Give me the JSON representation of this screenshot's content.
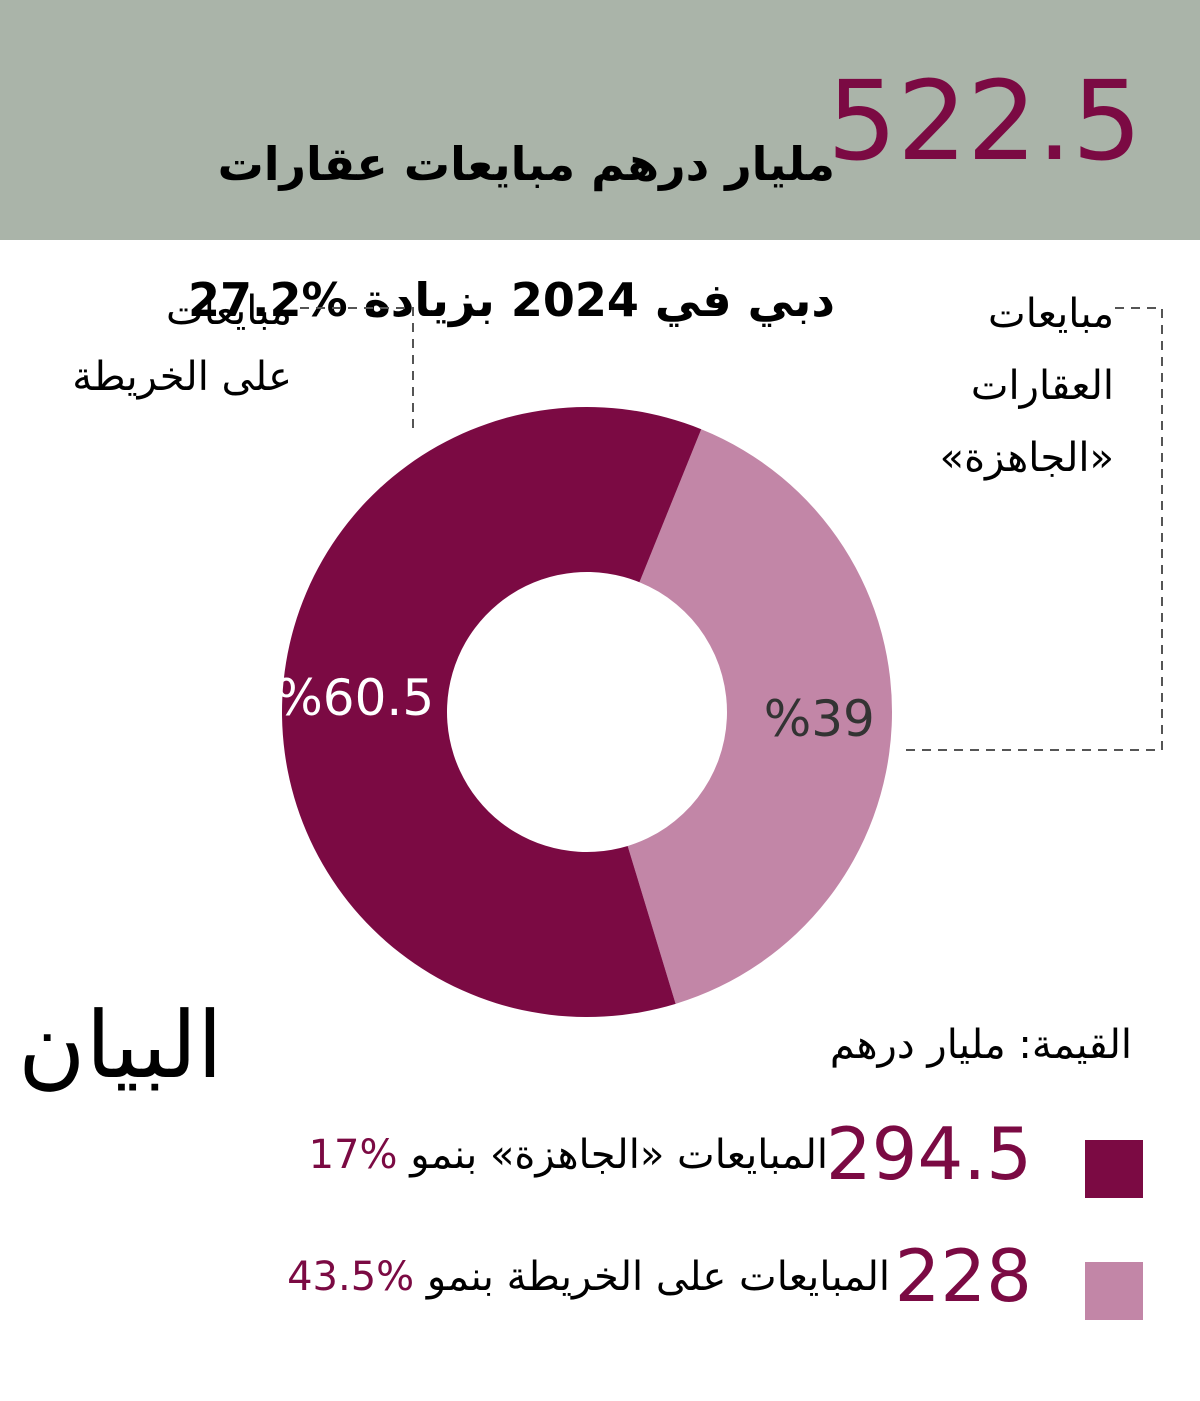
{
  "header": {
    "value": 522.5,
    "title_line1": "مليار درهم مبايعات عقارات",
    "title_line2": "دبي في 2024 بزيادة %27.2"
  },
  "chart_data": {
    "type": "pie",
    "donut": true,
    "categories": [
      "مبايعات\nعلى الخريطة",
      "مبايعات\nالعقارات\n«الجاهزة»"
    ],
    "values": [
      60.5,
      39
    ],
    "value_labels": [
      "%60.5",
      "%39"
    ],
    "colors": [
      "#7b0a43",
      "#c286a7"
    ]
  },
  "legend": {
    "unit": "القيمة: مليار درهم",
    "items": [
      {
        "value": 294.5,
        "label": "المبايعات «الجاهزة» بنمو",
        "growth": "%17",
        "color": "#7b0a43"
      },
      {
        "value": 228,
        "label": "المبايعات على الخريطة بنمو",
        "growth": "%43.5",
        "color": "#c286a7"
      }
    ]
  },
  "logo": "البيان"
}
